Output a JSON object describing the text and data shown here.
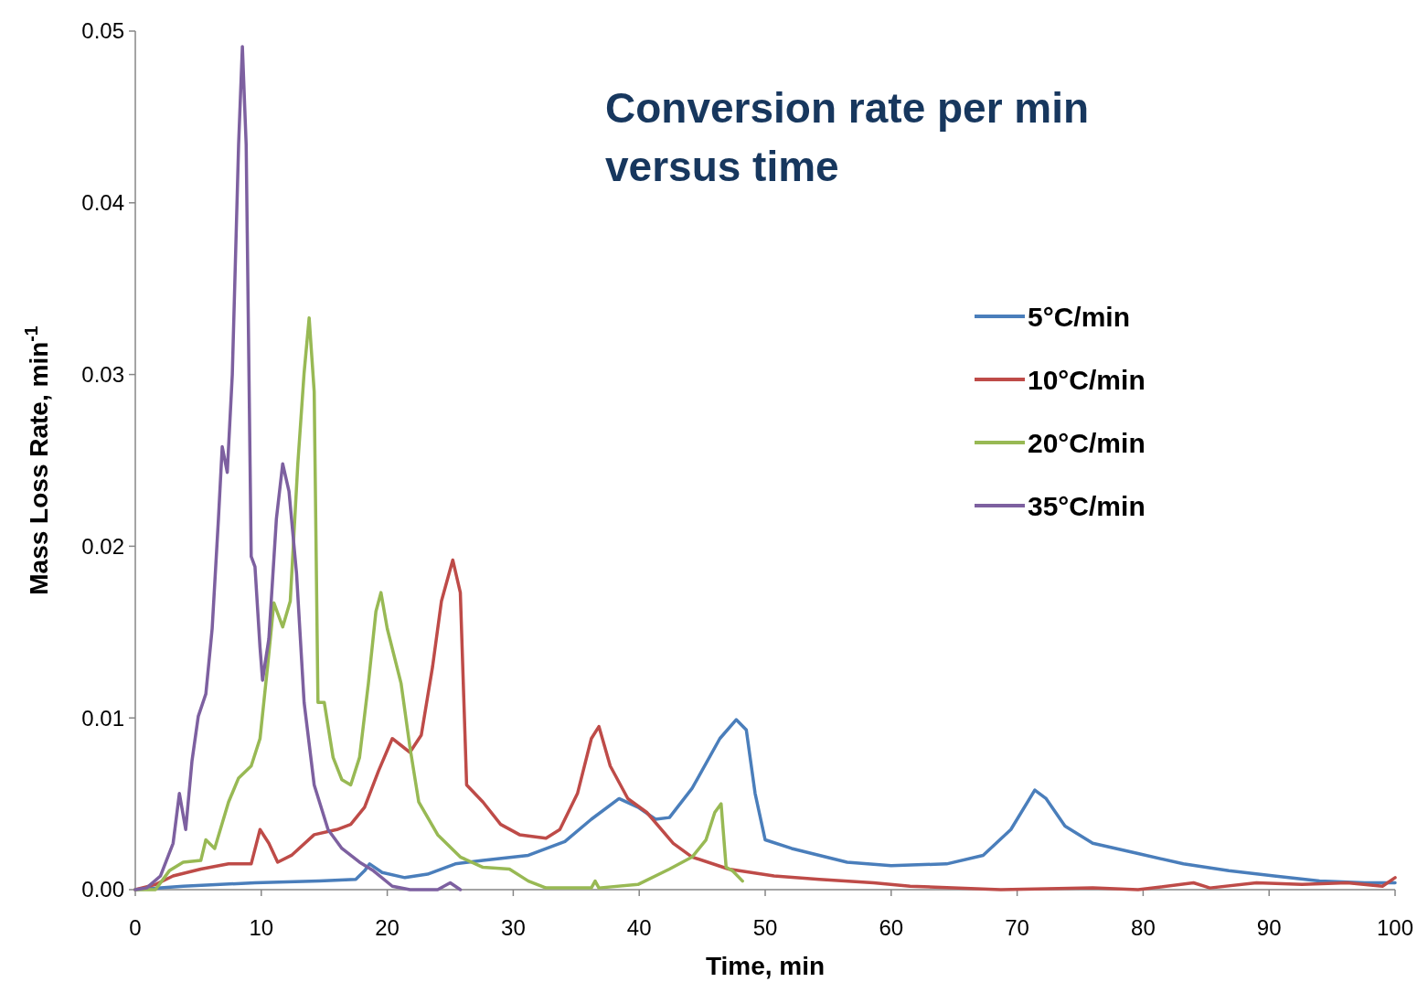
{
  "chart_data": {
    "type": "line",
    "title": "Conversion rate per min versus time",
    "xlabel": "Time, min",
    "ylabel": "Mass Loss Rate, min$^{-1}$",
    "xlim": [
      0,
      100
    ],
    "xticks": [
      0,
      10,
      20,
      30,
      40,
      50,
      60,
      70,
      80,
      90,
      100
    ],
    "ylim": [
      0,
      0.05
    ],
    "yticks": [
      {
        "value": 0,
        "label": "0.00"
      },
      {
        "value": 0.01,
        "label": "0.01"
      },
      {
        "value": 0.02,
        "label": "0.02"
      },
      {
        "value": 0.03,
        "label": "0.03"
      },
      {
        "value": 0.04,
        "label": "0.04"
      },
      {
        "value": 0.05,
        "label": "0.05"
      }
    ],
    "grid": false,
    "legend": "right",
    "marker": "none",
    "line_style": "solid",
    "series": [
      {
        "name": "5°C/min",
        "color": "#4a7ebb",
        "x": [
          0,
          3.8,
          9.5,
          14.6,
          17.5,
          18.2,
          18.6,
          19.6,
          21.4,
          23.2,
          25.4,
          27.6,
          31.2,
          34.1,
          36.2,
          38.4,
          39.9,
          41.3,
          42.4,
          44.2,
          46.4,
          47.7,
          48.5,
          49.2,
          50,
          52.1,
          56.5,
          60,
          64.4,
          67.3,
          69.5,
          71.4,
          72.3,
          73.8,
          76,
          79.6,
          83.2,
          86.8,
          90.4,
          94,
          97.6,
          100
        ],
        "values": [
          0,
          0.0002,
          0.0004,
          0.0005,
          0.0006,
          0.0011,
          0.0015,
          0.001,
          0.0007,
          0.0009,
          0.0015,
          0.0017,
          0.002,
          0.0028,
          0.0041,
          0.0053,
          0.0048,
          0.0041,
          0.0042,
          0.0059,
          0.0088,
          0.0099,
          0.0093,
          0.0056,
          0.0029,
          0.0024,
          0.0016,
          0.0014,
          0.0015,
          0.002,
          0.0035,
          0.0058,
          0.0053,
          0.0037,
          0.0027,
          0.0021,
          0.0015,
          0.0011,
          0.0008,
          0.0005,
          0.0004,
          0.0004
        ]
      },
      {
        "name": "10°C/min",
        "color": "#be4b48",
        "x": [
          0,
          1.6,
          3,
          5.2,
          7.4,
          9.2,
          9.9,
          10.6,
          11.3,
          12.4,
          14.2,
          16,
          17.1,
          18.2,
          19.3,
          20.4,
          21.1,
          21.8,
          22.7,
          23.6,
          24.3,
          25.2,
          25.8,
          26.3,
          27.6,
          29,
          30.5,
          32.6,
          33.7,
          35.1,
          36.2,
          36.8,
          37.7,
          39.1,
          40.6,
          42.7,
          44.2,
          47.1,
          50.7,
          54.3,
          58.6,
          61.5,
          68.7,
          76,
          79.6,
          84,
          85.3,
          89,
          92.6,
          96.2,
          99,
          100
        ],
        "values": [
          0,
          0.0003,
          0.0008,
          0.0012,
          0.0015,
          0.0015,
          0.0035,
          0.0027,
          0.0016,
          0.002,
          0.0032,
          0.0035,
          0.0038,
          0.0048,
          0.0069,
          0.0088,
          0.0084,
          0.008,
          0.009,
          0.013,
          0.0168,
          0.0192,
          0.0173,
          0.0061,
          0.0051,
          0.0038,
          0.0032,
          0.003,
          0.0035,
          0.0056,
          0.0088,
          0.0095,
          0.0072,
          0.0053,
          0.0045,
          0.0027,
          0.0019,
          0.0012,
          0.0008,
          0.0006,
          0.0004,
          0.0002,
          0,
          0.0001,
          0,
          0.0004,
          0.0001,
          0.0004,
          0.0003,
          0.0004,
          0.0002,
          0.0007
        ]
      },
      {
        "name": "20°C/min",
        "color": "#98b954",
        "x": [
          0,
          1.6,
          2.7,
          3.8,
          5.2,
          5.6,
          6.3,
          7.4,
          8.2,
          9.2,
          9.9,
          10.5,
          11,
          11.7,
          12.3,
          12.9,
          13.4,
          13.8,
          14.2,
          14.5,
          15,
          15.7,
          16.4,
          17.1,
          17.8,
          18.5,
          19.1,
          19.5,
          20,
          21.1,
          21.8,
          22.5,
          24,
          25.8,
          27.6,
          29.7,
          31.2,
          32.6,
          36.2,
          36.5,
          36.8,
          39.9,
          42.4,
          44.2,
          45.3,
          46,
          46.5,
          46.9,
          47.4,
          48.2
        ],
        "values": [
          0,
          0,
          0.0011,
          0.0016,
          0.0017,
          0.0029,
          0.0024,
          0.0051,
          0.0065,
          0.0072,
          0.0088,
          0.013,
          0.0167,
          0.0153,
          0.0168,
          0.0248,
          0.0301,
          0.0333,
          0.029,
          0.0109,
          0.0109,
          0.0077,
          0.0064,
          0.0061,
          0.0077,
          0.012,
          0.0162,
          0.0173,
          0.0152,
          0.012,
          0.0083,
          0.0051,
          0.0032,
          0.0019,
          0.0013,
          0.0012,
          0.0005,
          0.0001,
          0.0001,
          0.0005,
          0.0001,
          0.0003,
          0.0012,
          0.0019,
          0.0029,
          0.0045,
          0.005,
          0.0013,
          0.0011,
          0.0005
        ]
      },
      {
        "name": "35°C/min",
        "color": "#7d60a0",
        "x": [
          0,
          0.9,
          2,
          3,
          3.5,
          4,
          4.5,
          5,
          5.6,
          6.1,
          6.6,
          6.9,
          7.3,
          7.7,
          8.2,
          8.5,
          8.8,
          9.2,
          9.5,
          9.9,
          10.1,
          10.6,
          11.2,
          11.7,
          12.2,
          12.8,
          13.4,
          14.2,
          15.3,
          16.4,
          17.8,
          18.9,
          20.4,
          21.8,
          24,
          25,
          25.8
        ],
        "values": [
          0,
          0.0001,
          0.0008,
          0.0027,
          0.0056,
          0.0035,
          0.0075,
          0.0101,
          0.0114,
          0.0152,
          0.0216,
          0.0258,
          0.0243,
          0.03,
          0.0434,
          0.0491,
          0.0434,
          0.0194,
          0.0188,
          0.0141,
          0.0122,
          0.0146,
          0.0216,
          0.0248,
          0.0232,
          0.0184,
          0.0109,
          0.0061,
          0.0035,
          0.0024,
          0.0016,
          0.0011,
          0.0002,
          0,
          0,
          0.0004,
          0
        ]
      }
    ]
  }
}
